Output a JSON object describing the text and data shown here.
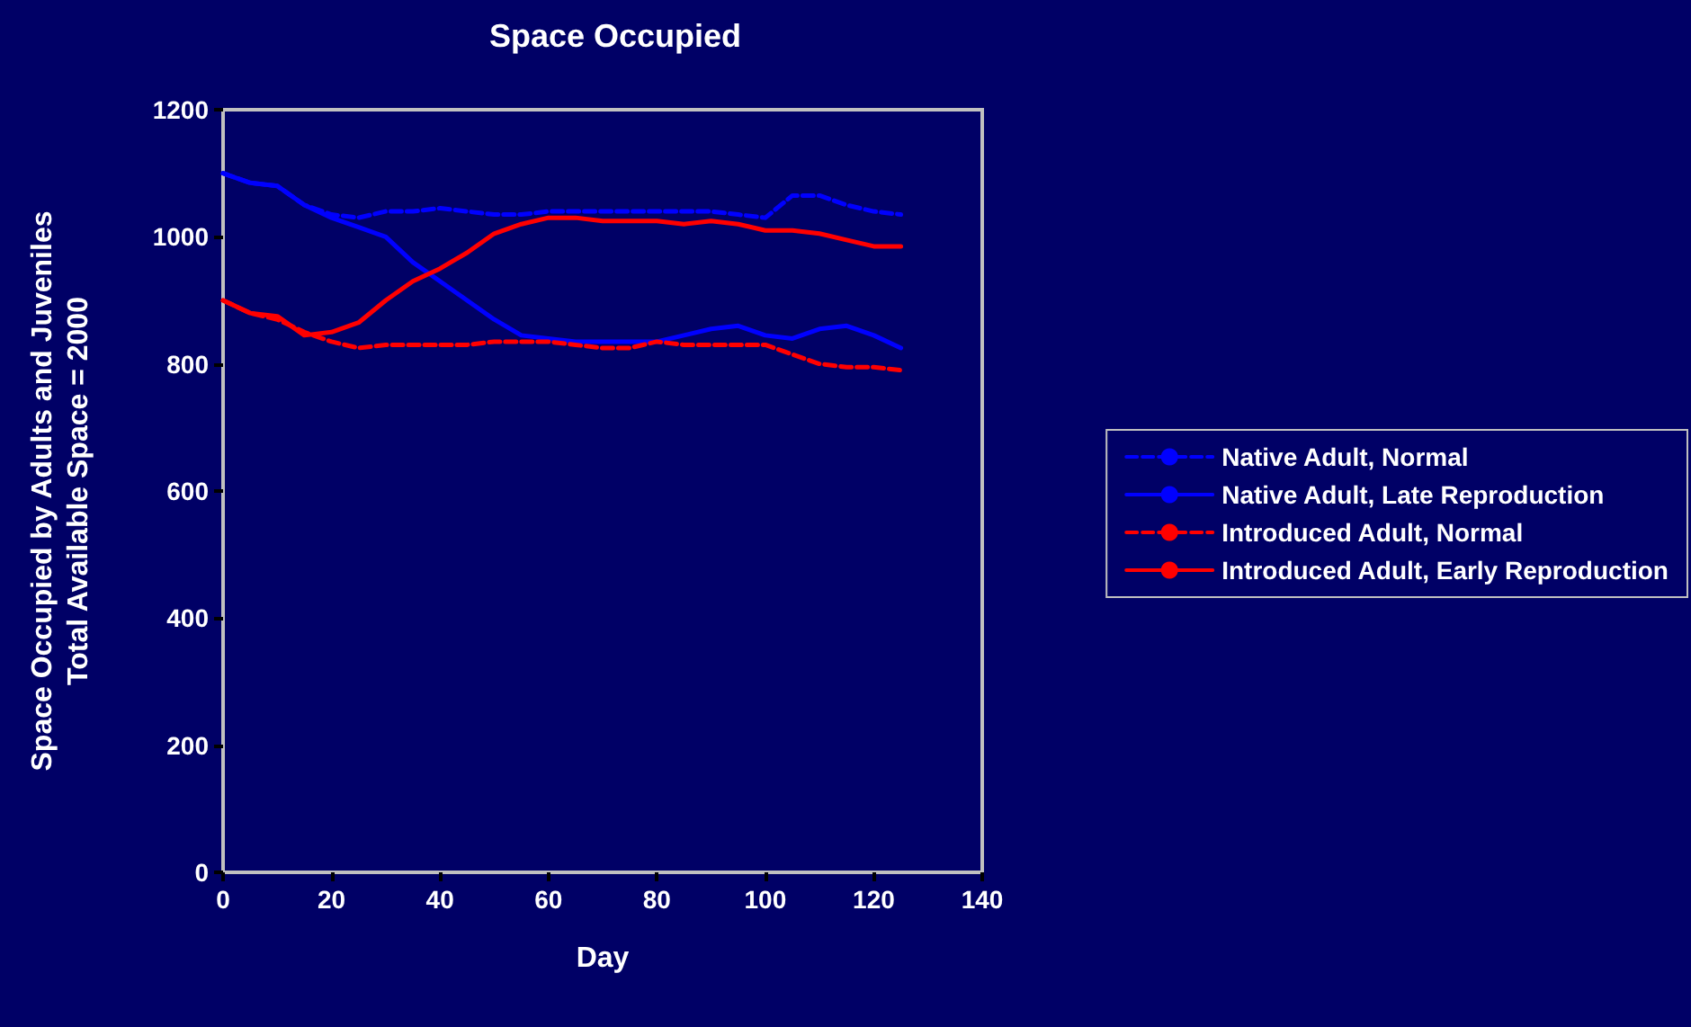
{
  "chart_data": {
    "type": "line",
    "title": "Space Occupied",
    "xlabel": "Day",
    "ylabel": "Space Occupied by Adults and Juveniles\nTotal Available Space = 2000",
    "x": [
      0,
      5,
      10,
      15,
      20,
      25,
      30,
      35,
      40,
      45,
      50,
      55,
      60,
      65,
      70,
      75,
      80,
      85,
      90,
      95,
      100,
      105,
      110,
      115,
      120,
      125
    ],
    "series": [
      {
        "name": "Native Adult, Normal",
        "color": "#0000ff",
        "line_style": "dashed",
        "values": [
          1100,
          1085,
          1080,
          1050,
          1035,
          1030,
          1040,
          1040,
          1045,
          1040,
          1035,
          1035,
          1040,
          1040,
          1040,
          1040,
          1040,
          1040,
          1040,
          1035,
          1030,
          1065,
          1065,
          1050,
          1040,
          1035
        ]
      },
      {
        "name": "Native Adult, Late Reproduction",
        "color": "#0000ff",
        "line_style": "solid",
        "values": [
          1100,
          1085,
          1080,
          1050,
          1030,
          1015,
          1000,
          960,
          930,
          900,
          870,
          845,
          840,
          835,
          835,
          835,
          835,
          845,
          855,
          860,
          845,
          840,
          855,
          860,
          845,
          825
        ]
      },
      {
        "name": "Introduced Adult, Normal",
        "color": "#ff0000",
        "line_style": "dashed",
        "values": [
          900,
          880,
          870,
          850,
          835,
          825,
          830,
          830,
          830,
          830,
          835,
          835,
          835,
          830,
          825,
          825,
          835,
          830,
          830,
          830,
          830,
          815,
          800,
          795,
          795,
          790
        ]
      },
      {
        "name": "Introduced Adult, Early Reproduction",
        "color": "#ff0000",
        "line_style": "solid",
        "values": [
          900,
          880,
          875,
          845,
          850,
          865,
          900,
          930,
          950,
          975,
          1005,
          1020,
          1030,
          1030,
          1025,
          1025,
          1025,
          1020,
          1025,
          1020,
          1010,
          1010,
          1005,
          995,
          985,
          985
        ]
      }
    ],
    "xlim": [
      0,
      140
    ],
    "xticks": [
      0,
      20,
      40,
      60,
      80,
      100,
      120,
      140
    ],
    "ylim": [
      0,
      1200
    ],
    "yticks": [
      0,
      200,
      400,
      600,
      800,
      1000,
      1200
    ],
    "grid": false,
    "legend": "right",
    "marker": "none"
  }
}
